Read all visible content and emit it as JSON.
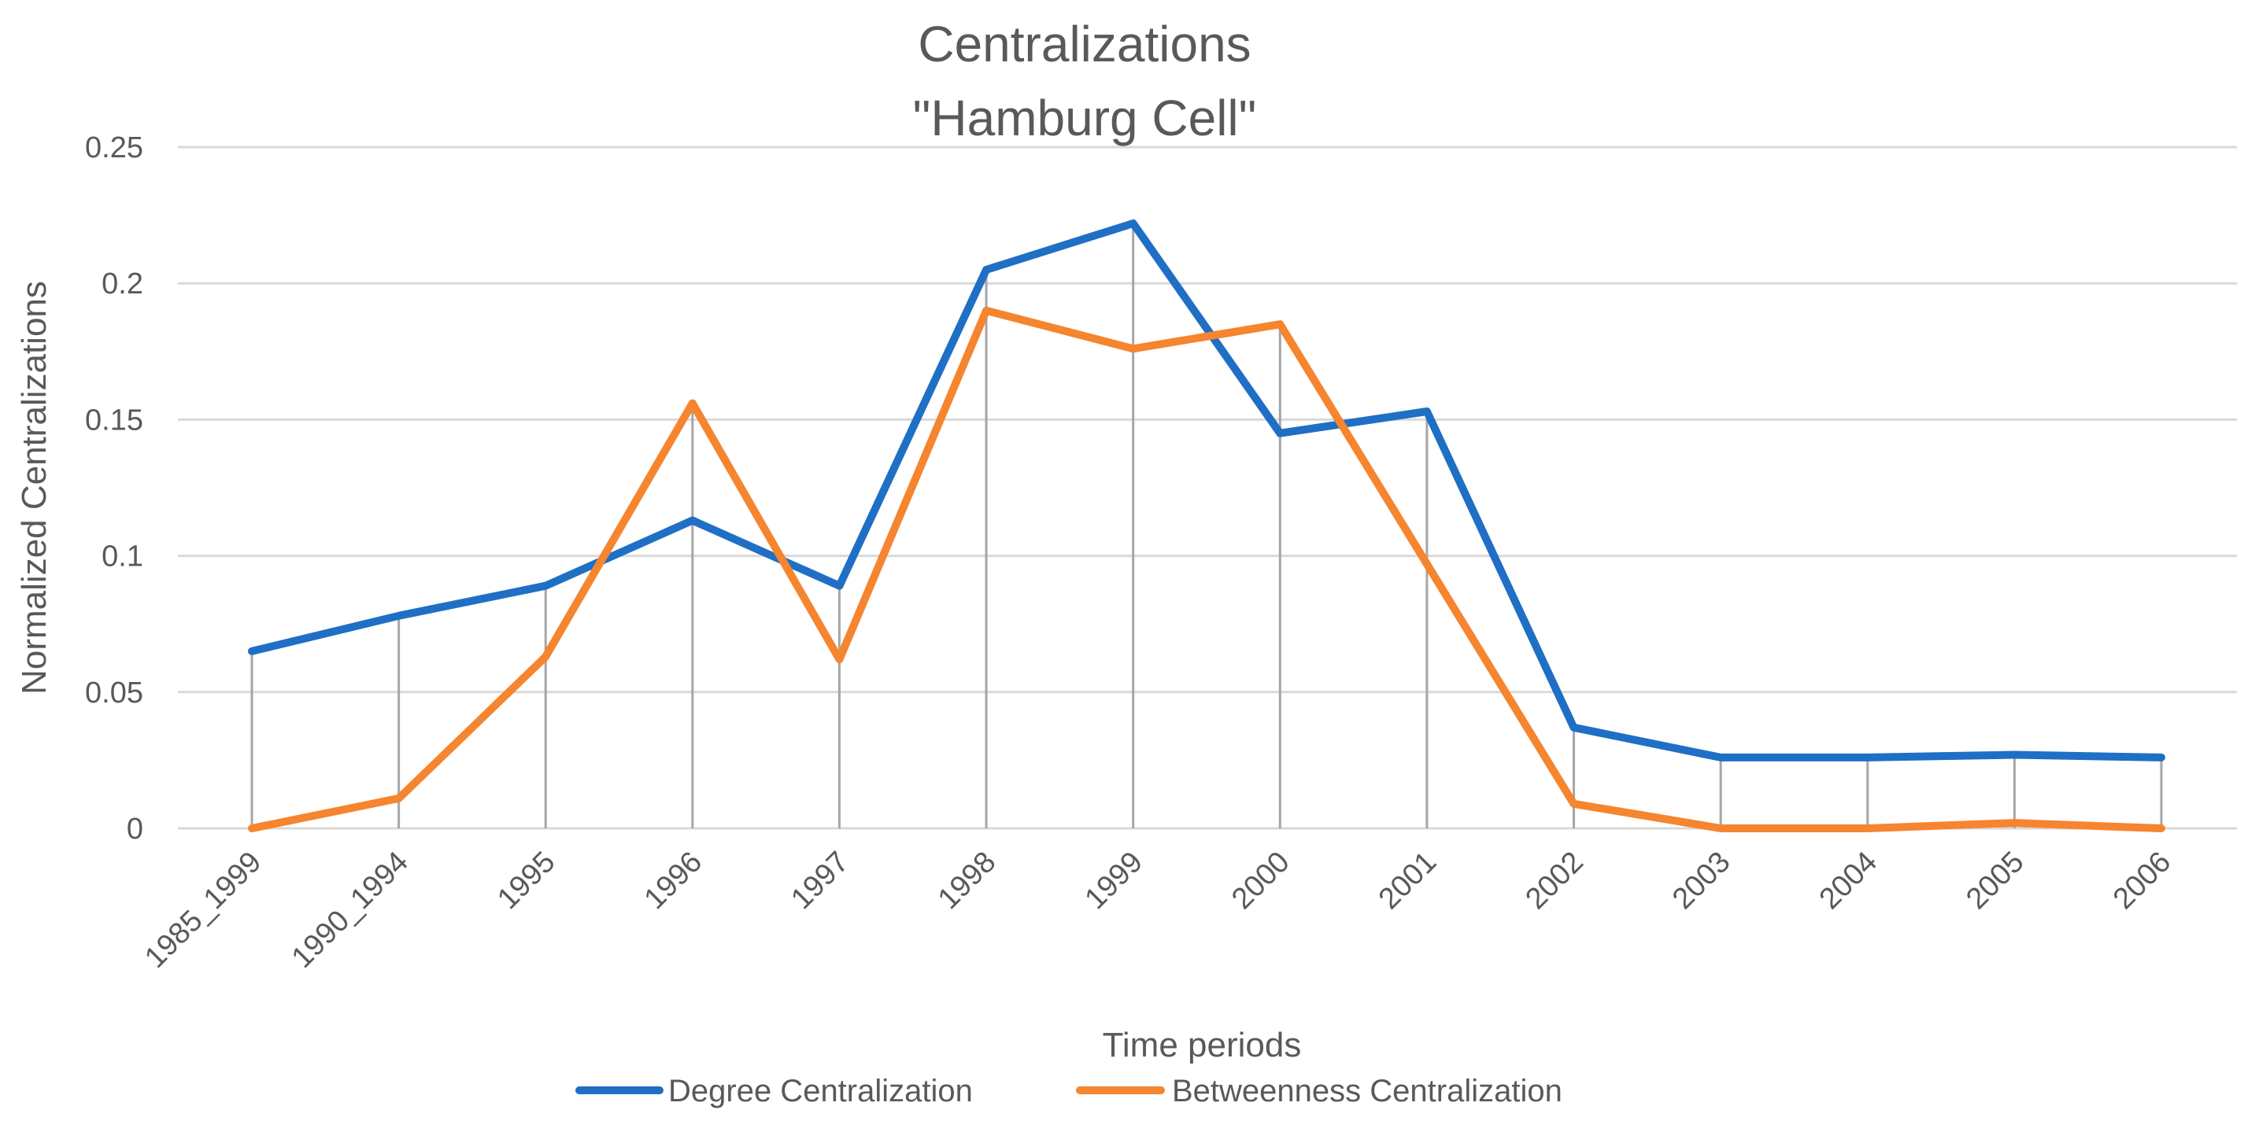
{
  "chart_data": {
    "type": "line",
    "title": "Centralizations",
    "subtitle": "\"Hamburg Cell\"",
    "xlabel": "Time periods",
    "ylabel": "Normalized Centralizations",
    "categories": [
      "1985_1999",
      "1990_1994",
      "1995",
      "1996",
      "1997",
      "1998",
      "1999",
      "2000",
      "2001",
      "2002",
      "2003",
      "2004",
      "2005",
      "2006"
    ],
    "ylim": [
      0,
      0.25
    ],
    "yticks": [
      0,
      0.05,
      0.1,
      0.15,
      0.2,
      0.25
    ],
    "ytick_labels": [
      "0",
      "0.05",
      "0.1",
      "0.15",
      "0.2",
      "0.25"
    ],
    "grid": true,
    "drop_lines": true,
    "legend_position": "bottom",
    "series": [
      {
        "name": "Degree Centralization",
        "color": "#1f6fc5",
        "values": [
          0.065,
          0.078,
          0.089,
          0.113,
          0.089,
          0.205,
          0.222,
          0.145,
          0.153,
          0.037,
          0.026,
          0.026,
          0.027,
          0.026
        ]
      },
      {
        "name": "Betweenness Centralization",
        "color": "#f5852f",
        "values": [
          0.0,
          0.011,
          0.063,
          0.156,
          0.062,
          0.19,
          0.176,
          0.185,
          0.097,
          0.009,
          0.0,
          0.0,
          0.002,
          0.0
        ]
      }
    ]
  }
}
